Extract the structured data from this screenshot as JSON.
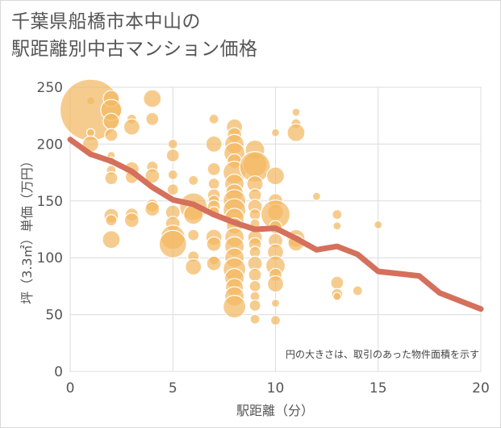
{
  "title_line1": "千葉県船橋市本中山の",
  "title_line2": "駅距離別中古マンション価格",
  "chart_data": {
    "type": "scatter",
    "xlabel": "駅距離（分）",
    "ylabel": "坪（3.3㎡）単価（万円）",
    "xlim": [
      0,
      20
    ],
    "ylim": [
      0,
      250
    ],
    "xticks": [
      0,
      5,
      10,
      15,
      20
    ],
    "yticks": [
      0,
      50,
      100,
      150,
      200,
      250
    ],
    "grid": true,
    "note": "円の大きさは、取引のあった物件面積を示す",
    "bubble_color": "#f3b962",
    "line_color": "#d4705c",
    "points": [
      {
        "x": 1,
        "y": 238,
        "s": 5
      },
      {
        "x": 1,
        "y": 230,
        "s": 38
      },
      {
        "x": 1,
        "y": 210,
        "s": 5
      },
      {
        "x": 1,
        "y": 200,
        "s": 10
      },
      {
        "x": 2,
        "y": 240,
        "s": 10
      },
      {
        "x": 2,
        "y": 230,
        "s": 13
      },
      {
        "x": 2,
        "y": 220,
        "s": 10
      },
      {
        "x": 2,
        "y": 208,
        "s": 8
      },
      {
        "x": 2,
        "y": 190,
        "s": 5
      },
      {
        "x": 2,
        "y": 185,
        "s": 5
      },
      {
        "x": 2,
        "y": 177,
        "s": 6
      },
      {
        "x": 2,
        "y": 170,
        "s": 8
      },
      {
        "x": 2,
        "y": 137,
        "s": 9
      },
      {
        "x": 2,
        "y": 133,
        "s": 7
      },
      {
        "x": 2,
        "y": 116,
        "s": 11
      },
      {
        "x": 3,
        "y": 222,
        "s": 6
      },
      {
        "x": 3,
        "y": 215,
        "s": 10
      },
      {
        "x": 3,
        "y": 178,
        "s": 9
      },
      {
        "x": 3,
        "y": 171,
        "s": 8
      },
      {
        "x": 3,
        "y": 138,
        "s": 8
      },
      {
        "x": 3,
        "y": 133,
        "s": 9
      },
      {
        "x": 4,
        "y": 240,
        "s": 11
      },
      {
        "x": 4,
        "y": 222,
        "s": 8
      },
      {
        "x": 4,
        "y": 180,
        "s": 7
      },
      {
        "x": 4,
        "y": 172,
        "s": 9
      },
      {
        "x": 4,
        "y": 146,
        "s": 8
      },
      {
        "x": 4,
        "y": 143,
        "s": 9
      },
      {
        "x": 5,
        "y": 200,
        "s": 6
      },
      {
        "x": 5,
        "y": 190,
        "s": 8
      },
      {
        "x": 5,
        "y": 173,
        "s": 6
      },
      {
        "x": 5,
        "y": 160,
        "s": 7
      },
      {
        "x": 5,
        "y": 140,
        "s": 9
      },
      {
        "x": 5,
        "y": 130,
        "s": 9
      },
      {
        "x": 5,
        "y": 118,
        "s": 15
      },
      {
        "x": 5,
        "y": 112,
        "s": 17
      },
      {
        "x": 6,
        "y": 168,
        "s": 6
      },
      {
        "x": 6,
        "y": 145,
        "s": 17
      },
      {
        "x": 6,
        "y": 138,
        "s": 12
      },
      {
        "x": 6,
        "y": 120,
        "s": 7
      },
      {
        "x": 6,
        "y": 101,
        "s": 7
      },
      {
        "x": 6,
        "y": 92,
        "s": 10
      },
      {
        "x": 7,
        "y": 222,
        "s": 6
      },
      {
        "x": 7,
        "y": 200,
        "s": 10
      },
      {
        "x": 7,
        "y": 178,
        "s": 8
      },
      {
        "x": 7,
        "y": 165,
        "s": 7
      },
      {
        "x": 7,
        "y": 155,
        "s": 8
      },
      {
        "x": 7,
        "y": 150,
        "s": 7
      },
      {
        "x": 7,
        "y": 145,
        "s": 8
      },
      {
        "x": 7,
        "y": 140,
        "s": 7
      },
      {
        "x": 7,
        "y": 118,
        "s": 10
      },
      {
        "x": 7,
        "y": 112,
        "s": 9
      },
      {
        "x": 7,
        "y": 98,
        "s": 6
      },
      {
        "x": 7,
        "y": 95,
        "s": 9
      },
      {
        "x": 8,
        "y": 215,
        "s": 10
      },
      {
        "x": 8,
        "y": 208,
        "s": 9
      },
      {
        "x": 8,
        "y": 200,
        "s": 12
      },
      {
        "x": 8,
        "y": 192,
        "s": 13
      },
      {
        "x": 8,
        "y": 185,
        "s": 9
      },
      {
        "x": 8,
        "y": 175,
        "s": 14
      },
      {
        "x": 8,
        "y": 165,
        "s": 12
      },
      {
        "x": 8,
        "y": 157,
        "s": 11
      },
      {
        "x": 8,
        "y": 150,
        "s": 14
      },
      {
        "x": 8,
        "y": 142,
        "s": 14
      },
      {
        "x": 8,
        "y": 135,
        "s": 12
      },
      {
        "x": 8,
        "y": 128,
        "s": 10
      },
      {
        "x": 8,
        "y": 118,
        "s": 12
      },
      {
        "x": 8,
        "y": 110,
        "s": 12
      },
      {
        "x": 8,
        "y": 100,
        "s": 12
      },
      {
        "x": 8,
        "y": 90,
        "s": 14
      },
      {
        "x": 8,
        "y": 82,
        "s": 12
      },
      {
        "x": 8,
        "y": 74,
        "s": 11
      },
      {
        "x": 8,
        "y": 66,
        "s": 12
      },
      {
        "x": 8,
        "y": 57,
        "s": 14
      },
      {
        "x": 9,
        "y": 195,
        "s": 12
      },
      {
        "x": 9,
        "y": 182,
        "s": 15
      },
      {
        "x": 9,
        "y": 180,
        "s": 19
      },
      {
        "x": 9,
        "y": 165,
        "s": 10
      },
      {
        "x": 9,
        "y": 155,
        "s": 8
      },
      {
        "x": 9,
        "y": 145,
        "s": 9
      },
      {
        "x": 9,
        "y": 138,
        "s": 7
      },
      {
        "x": 9,
        "y": 130,
        "s": 6
      },
      {
        "x": 9,
        "y": 118,
        "s": 9
      },
      {
        "x": 9,
        "y": 112,
        "s": 8
      },
      {
        "x": 9,
        "y": 105,
        "s": 7
      },
      {
        "x": 9,
        "y": 95,
        "s": 9
      },
      {
        "x": 9,
        "y": 85,
        "s": 8
      },
      {
        "x": 9,
        "y": 75,
        "s": 7
      },
      {
        "x": 9,
        "y": 66,
        "s": 6
      },
      {
        "x": 9,
        "y": 58,
        "s": 7
      },
      {
        "x": 9,
        "y": 46,
        "s": 6
      },
      {
        "x": 10,
        "y": 210,
        "s": 5
      },
      {
        "x": 10,
        "y": 172,
        "s": 11
      },
      {
        "x": 10,
        "y": 150,
        "s": 9
      },
      {
        "x": 10,
        "y": 140,
        "s": 10
      },
      {
        "x": 10,
        "y": 138,
        "s": 18
      },
      {
        "x": 10,
        "y": 127,
        "s": 8
      },
      {
        "x": 10,
        "y": 115,
        "s": 9
      },
      {
        "x": 10,
        "y": 105,
        "s": 10
      },
      {
        "x": 10,
        "y": 93,
        "s": 12
      },
      {
        "x": 10,
        "y": 85,
        "s": 8
      },
      {
        "x": 10,
        "y": 77,
        "s": 10
      },
      {
        "x": 10,
        "y": 60,
        "s": 5
      },
      {
        "x": 10,
        "y": 45,
        "s": 6
      },
      {
        "x": 11,
        "y": 228,
        "s": 5
      },
      {
        "x": 11,
        "y": 218,
        "s": 6
      },
      {
        "x": 11,
        "y": 210,
        "s": 11
      },
      {
        "x": 11,
        "y": 117,
        "s": 11
      },
      {
        "x": 11,
        "y": 113,
        "s": 10
      },
      {
        "x": 12,
        "y": 154,
        "s": 5
      },
      {
        "x": 13,
        "y": 138,
        "s": 6
      },
      {
        "x": 13,
        "y": 128,
        "s": 5
      },
      {
        "x": 13,
        "y": 78,
        "s": 8
      },
      {
        "x": 13,
        "y": 68,
        "s": 7
      },
      {
        "x": 13,
        "y": 66,
        "s": 5
      },
      {
        "x": 14,
        "y": 71,
        "s": 6
      },
      {
        "x": 15,
        "y": 129,
        "s": 5
      }
    ],
    "trend": [
      {
        "x": 0,
        "y": 204
      },
      {
        "x": 1,
        "y": 191
      },
      {
        "x": 2,
        "y": 185
      },
      {
        "x": 3,
        "y": 176
      },
      {
        "x": 4,
        "y": 162
      },
      {
        "x": 5,
        "y": 151
      },
      {
        "x": 6,
        "y": 147
      },
      {
        "x": 7,
        "y": 138
      },
      {
        "x": 8,
        "y": 131
      },
      {
        "x": 9,
        "y": 125
      },
      {
        "x": 10,
        "y": 126
      },
      {
        "x": 11,
        "y": 117
      },
      {
        "x": 12,
        "y": 107
      },
      {
        "x": 13,
        "y": 110
      },
      {
        "x": 14,
        "y": 103
      },
      {
        "x": 15,
        "y": 88
      },
      {
        "x": 16,
        "y": 86
      },
      {
        "x": 17,
        "y": 84
      },
      {
        "x": 18,
        "y": 69
      },
      {
        "x": 19,
        "y": 62
      },
      {
        "x": 20,
        "y": 55
      }
    ]
  }
}
